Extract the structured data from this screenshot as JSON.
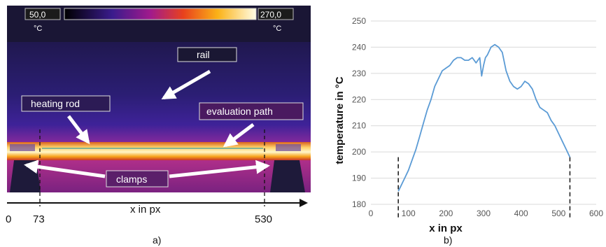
{
  "panel_a": {
    "scale_min": "50,0",
    "scale_max": "270,0",
    "unit_left": "°C",
    "unit_right": "°C",
    "annotations": {
      "rail": "rail",
      "heating_rod": "heating rod",
      "evaluation_path": "evaluation path",
      "clamps": "clamps"
    },
    "axis_label": "x in px",
    "ticks": [
      "0",
      "73",
      "530"
    ],
    "caption": "a)"
  },
  "panel_b": {
    "caption": "b)"
  },
  "colors": {
    "line": "#5b9bd5",
    "grid": "#d9d9d9",
    "arrow": "#ffffff",
    "axis": "#222222"
  },
  "chart_data": {
    "type": "line",
    "xlabel": "x in px",
    "ylabel": "temperature in °C",
    "xlim": [
      0,
      600
    ],
    "ylim": [
      180,
      250
    ],
    "x_ticks": [
      0,
      100,
      200,
      300,
      400,
      500,
      600
    ],
    "y_ticks": [
      180,
      190,
      200,
      210,
      220,
      230,
      240,
      250
    ],
    "grid": "horizontal",
    "markers_x": [
      73,
      530
    ],
    "series": [
      {
        "x": [
          73,
          80,
          90,
          100,
          110,
          120,
          130,
          140,
          150,
          160,
          170,
          180,
          190,
          200,
          210,
          220,
          230,
          240,
          250,
          260,
          270,
          280,
          290,
          295,
          300,
          305,
          310,
          320,
          330,
          340,
          350,
          360,
          370,
          380,
          390,
          400,
          410,
          420,
          430,
          440,
          450,
          460,
          470,
          480,
          490,
          500,
          510,
          520,
          530
        ],
        "values": [
          185,
          187,
          190,
          193,
          197,
          201,
          206,
          211,
          216,
          220,
          225,
          228,
          231,
          232,
          233,
          235,
          236,
          236,
          235,
          235,
          236,
          234,
          236,
          229,
          233,
          236,
          237,
          240,
          241,
          240,
          238,
          231,
          227,
          225,
          224,
          225,
          227,
          226,
          224,
          220,
          217,
          216,
          215,
          212,
          210,
          207,
          204,
          201,
          198
        ]
      }
    ]
  }
}
